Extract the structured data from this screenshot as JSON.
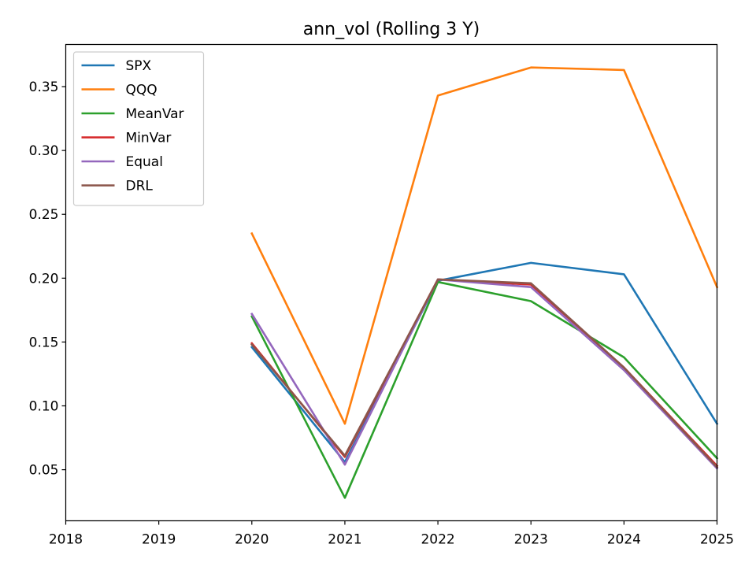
{
  "chart_data": {
    "type": "line",
    "title": "ann_vol (Rolling 3 Y)",
    "xlabel": "",
    "ylabel": "",
    "x": [
      2020,
      2021,
      2022,
      2023,
      2024,
      2025
    ],
    "xlim": [
      2018,
      2025
    ],
    "ylim": [
      0.01,
      0.383
    ],
    "xticks": [
      "2018",
      "2019",
      "2020",
      "2021",
      "2022",
      "2023",
      "2024",
      "2025"
    ],
    "yticks": [
      "0.05",
      "0.10",
      "0.15",
      "0.20",
      "0.25",
      "0.30",
      "0.35"
    ],
    "grid": false,
    "legend_position": "upper-left",
    "series": [
      {
        "name": "SPX",
        "color": "#1f77b4",
        "values": [
          0.146,
          0.056,
          0.198,
          0.212,
          0.203,
          0.086
        ]
      },
      {
        "name": "QQQ",
        "color": "#ff7f0e",
        "values": [
          0.235,
          0.086,
          0.343,
          0.365,
          0.363,
          0.193
        ]
      },
      {
        "name": "MeanVar",
        "color": "#2ca02c",
        "values": [
          0.17,
          0.028,
          0.197,
          0.182,
          0.138,
          0.059
        ]
      },
      {
        "name": "MinVar",
        "color": "#d62728",
        "values": [
          0.149,
          0.06,
          0.199,
          0.195,
          0.13,
          0.053
        ]
      },
      {
        "name": "Equal",
        "color": "#9467bd",
        "values": [
          0.172,
          0.054,
          0.199,
          0.193,
          0.128,
          0.051
        ]
      },
      {
        "name": "DRL",
        "color": "#8c564b",
        "values": [
          0.148,
          0.061,
          0.199,
          0.196,
          0.13,
          0.052
        ]
      }
    ]
  }
}
